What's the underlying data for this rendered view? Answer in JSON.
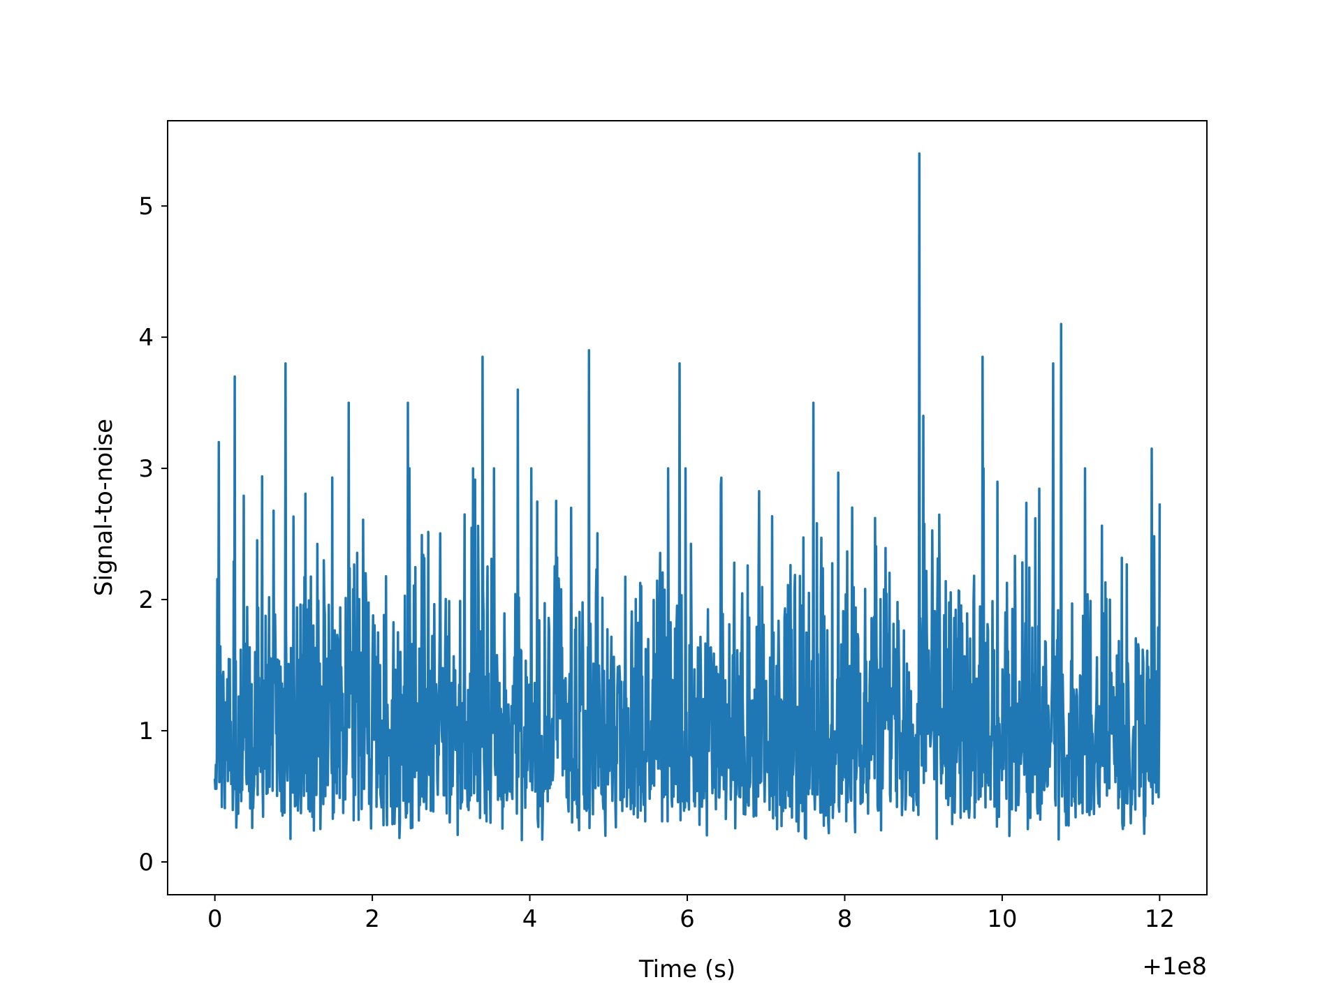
{
  "chart_data": {
    "type": "line",
    "xlabel": "Time (s)",
    "ylabel": "Signal-to-noise",
    "x_offset_label": "+1e8",
    "xlim": [
      -0.6,
      12.6
    ],
    "ylim": [
      -0.25,
      5.65
    ],
    "xticks": [
      0,
      2,
      4,
      6,
      8,
      10,
      12
    ],
    "xtick_labels": [
      "0",
      "2",
      "4",
      "6",
      "8",
      "10",
      "12"
    ],
    "yticks": [
      0,
      1,
      2,
      3,
      4,
      5
    ],
    "ytick_labels": [
      "0",
      "1",
      "2",
      "3",
      "4",
      "5"
    ],
    "grid": false,
    "series": [
      {
        "color": "#1f77b4",
        "x_start": 0,
        "x_end": 12,
        "samples": 1900,
        "typical_range": [
          0.05,
          2.5
        ],
        "peaks": [
          {
            "x": 0.05,
            "y": 3.2
          },
          {
            "x": 0.25,
            "y": 3.7
          },
          {
            "x": 0.9,
            "y": 3.8
          },
          {
            "x": 1.7,
            "y": 3.5
          },
          {
            "x": 2.45,
            "y": 3.5
          },
          {
            "x": 3.4,
            "y": 3.85
          },
          {
            "x": 3.85,
            "y": 3.6
          },
          {
            "x": 4.75,
            "y": 3.9
          },
          {
            "x": 5.9,
            "y": 3.8
          },
          {
            "x": 7.6,
            "y": 3.5
          },
          {
            "x": 8.95,
            "y": 5.4
          },
          {
            "x": 9.0,
            "y": 3.4
          },
          {
            "x": 9.75,
            "y": 3.85
          },
          {
            "x": 10.65,
            "y": 3.8
          },
          {
            "x": 10.75,
            "y": 4.1
          },
          {
            "x": 11.9,
            "y": 3.15
          }
        ]
      }
    ]
  }
}
